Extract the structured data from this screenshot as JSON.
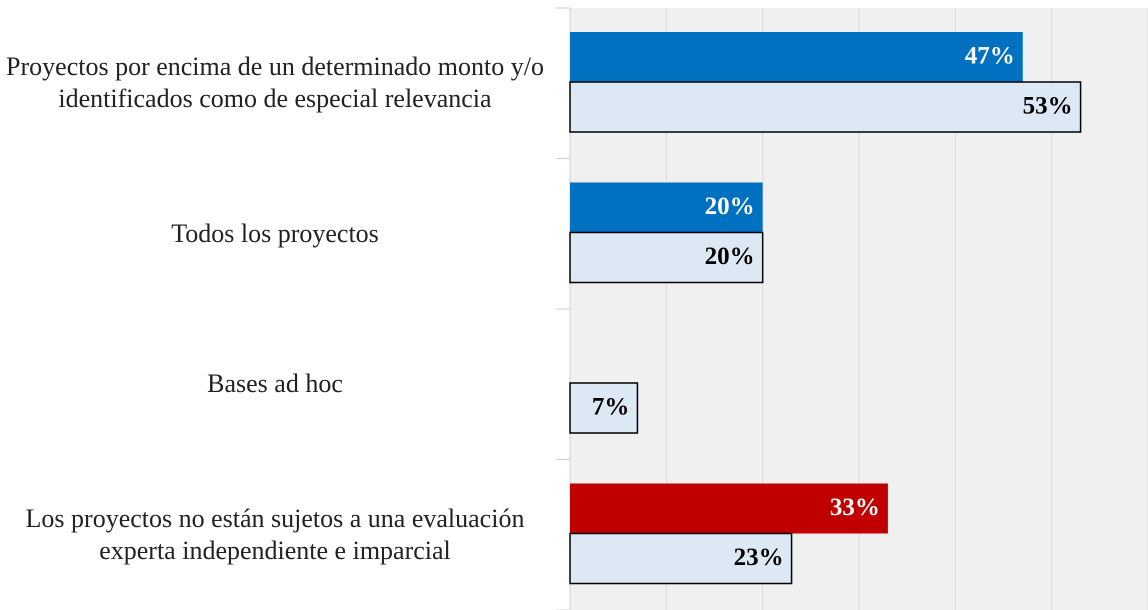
{
  "chart_data": {
    "type": "hbar",
    "categories": [
      "Proyectos por encima de un determinado monto y/o identificados como de especial relevancia",
      "Todos los proyectos",
      "Bases ad hoc",
      "Los proyectos no están sujetos a una evaluación experta independiente e imparcial"
    ],
    "series": [
      {
        "color": "#0070c0",
        "colors": [
          "#0070c0",
          "#0070c0",
          "#0070c0",
          "#c00000"
        ],
        "label_color": "#ffffff",
        "values": [
          47,
          20,
          null,
          33
        ],
        "value_labels": [
          "47%",
          "20%",
          null,
          "33%"
        ]
      },
      {
        "color": "#dde8f5",
        "border": "#000000",
        "label_color": "#000000",
        "values": [
          53,
          20,
          7,
          23
        ],
        "value_labels": [
          "53%",
          "20%",
          "7%",
          "23%"
        ]
      }
    ],
    "xlim": [
      0,
      60
    ],
    "xticks": [
      0,
      10,
      20,
      30,
      40,
      50,
      60
    ],
    "grid": true
  }
}
